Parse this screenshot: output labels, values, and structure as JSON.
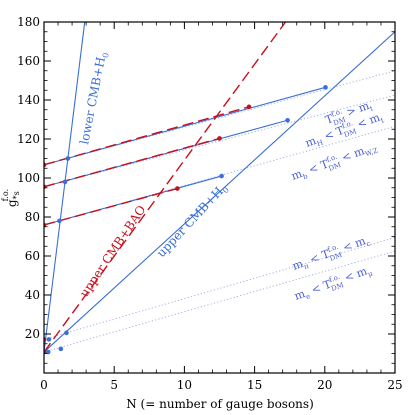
{
  "chart_data": {
    "type": "line",
    "xlabel": "N (= number of gauge bosons)",
    "ylabel": "g",
    "ylabel_sub": "*s",
    "ylabel_sup": "f.o.",
    "xlim": [
      0,
      25
    ],
    "ylim": [
      0,
      180
    ],
    "xticks": [
      0,
      5,
      10,
      15,
      20,
      25
    ],
    "yticks": [
      20,
      40,
      60,
      80,
      100,
      120,
      140,
      160,
      180
    ],
    "colors": {
      "blue": "#3a6fd6",
      "red": "#c8101c",
      "dotted": "#9aa8e6",
      "label": "#4a5fd4"
    },
    "series": [
      {
        "x": [
          0,
          25
        ],
        "y": [
          10.75,
          175
        ],
        "style": "blue-solid"
      },
      {
        "x": [
          0,
          20.05
        ],
        "y": [
          106.75,
          146.5
        ],
        "style": "blue-solid"
      },
      {
        "x": [
          0,
          17.35
        ],
        "y": [
          95.5,
          129.6
        ],
        "style": "blue-solid"
      },
      {
        "x": [
          0,
          12.65
        ],
        "y": [
          75.9,
          101
        ],
        "style": "blue-solid"
      },
      {
        "x": [
          0,
          2.9
        ],
        "y": [
          10.75,
          180
        ],
        "style": "blue-solid"
      },
      {
        "x": [
          0,
          17.2
        ],
        "y": [
          10.75,
          180
        ],
        "style": "red-dashed"
      },
      {
        "x": [
          0,
          14.6
        ],
        "y": [
          106.75,
          136.5
        ],
        "style": "red-dashed"
      },
      {
        "x": [
          0,
          12.5
        ],
        "y": [
          95.5,
          120.3
        ],
        "style": "red-dashed"
      },
      {
        "x": [
          0,
          9.5
        ],
        "y": [
          75.9,
          94.6
        ],
        "style": "red-dashed"
      },
      {
        "x": [
          0,
          25
        ],
        "y": [
          10.75,
          62.5
        ],
        "style": "dotted"
      },
      {
        "x": [
          0,
          25
        ],
        "y": [
          17.25,
          69.5
        ],
        "style": "dotted"
      },
      {
        "x": [
          0,
          25
        ],
        "y": [
          75.9,
          126.5
        ],
        "style": "dotted"
      },
      {
        "x": [
          0,
          25
        ],
        "y": [
          95.5,
          142.5
        ],
        "style": "dotted"
      },
      {
        "x": [
          0,
          25
        ],
        "y": [
          106.75,
          155
        ],
        "style": "dotted"
      }
    ],
    "points": [
      {
        "x": 0,
        "y": 10.75
      },
      {
        "x": 0,
        "y": 17.25
      },
      {
        "x": 0,
        "y": 75.9
      },
      {
        "x": 0,
        "y": 95.5
      },
      {
        "x": 0,
        "y": 106.75
      },
      {
        "x": 0.35,
        "y": 17.25
      },
      {
        "x": 0.3,
        "y": 10.75
      },
      {
        "x": 1.2,
        "y": 12.4
      },
      {
        "x": 1.6,
        "y": 20.6
      },
      {
        "x": 1.1,
        "y": 78
      },
      {
        "x": 1.5,
        "y": 98
      },
      {
        "x": 1.7,
        "y": 110
      },
      {
        "x": 9.5,
        "y": 94.6
      },
      {
        "x": 12.5,
        "y": 120.3
      },
      {
        "x": 14.6,
        "y": 136.5
      },
      {
        "x": 12.65,
        "y": 101
      },
      {
        "x": 17.35,
        "y": 129.6
      },
      {
        "x": 20.05,
        "y": 146.5
      }
    ],
    "annotations": {
      "lower_cmb": "lower CMB+H",
      "lower_cmb_sub": "0",
      "upper_cmb_h0": "upper CMB+H",
      "upper_cmb_h0_sub": "0",
      "upper_cmb_bao": "upper CMB+BAO",
      "r1_a": "T",
      "r1_sup": "f.o.",
      "r1_sub": "DM",
      "r1_b": " > m",
      "r1_c": "t",
      "r2_a": "m",
      "r2_a_sub": "H",
      "r2_b": " < T",
      "r2_sup": "f.o.",
      "r2_sub": "DM",
      "r2_c": " < m",
      "r2_c_sub": "t",
      "r3_a": "m",
      "r3_a_sub": "b",
      "r3_b": " < T",
      "r3_sup": "f.o.",
      "r3_sub": "DM",
      "r3_c": " < m",
      "r3_c_sub": "W,Z",
      "r4_a": "m",
      "r4_a_sub": "π",
      "r4_b": " < T",
      "r4_sup": "f.o.",
      "r4_sub": "DM",
      "r4_c": " < m",
      "r4_c_sub": "c",
      "r5_a": "m",
      "r5_a_sub": "e",
      "r5_b": " < T",
      "r5_sup": "f.o.",
      "r5_sub": "DM",
      "r5_c": " < m",
      "r5_c_sub": "μ"
    }
  }
}
